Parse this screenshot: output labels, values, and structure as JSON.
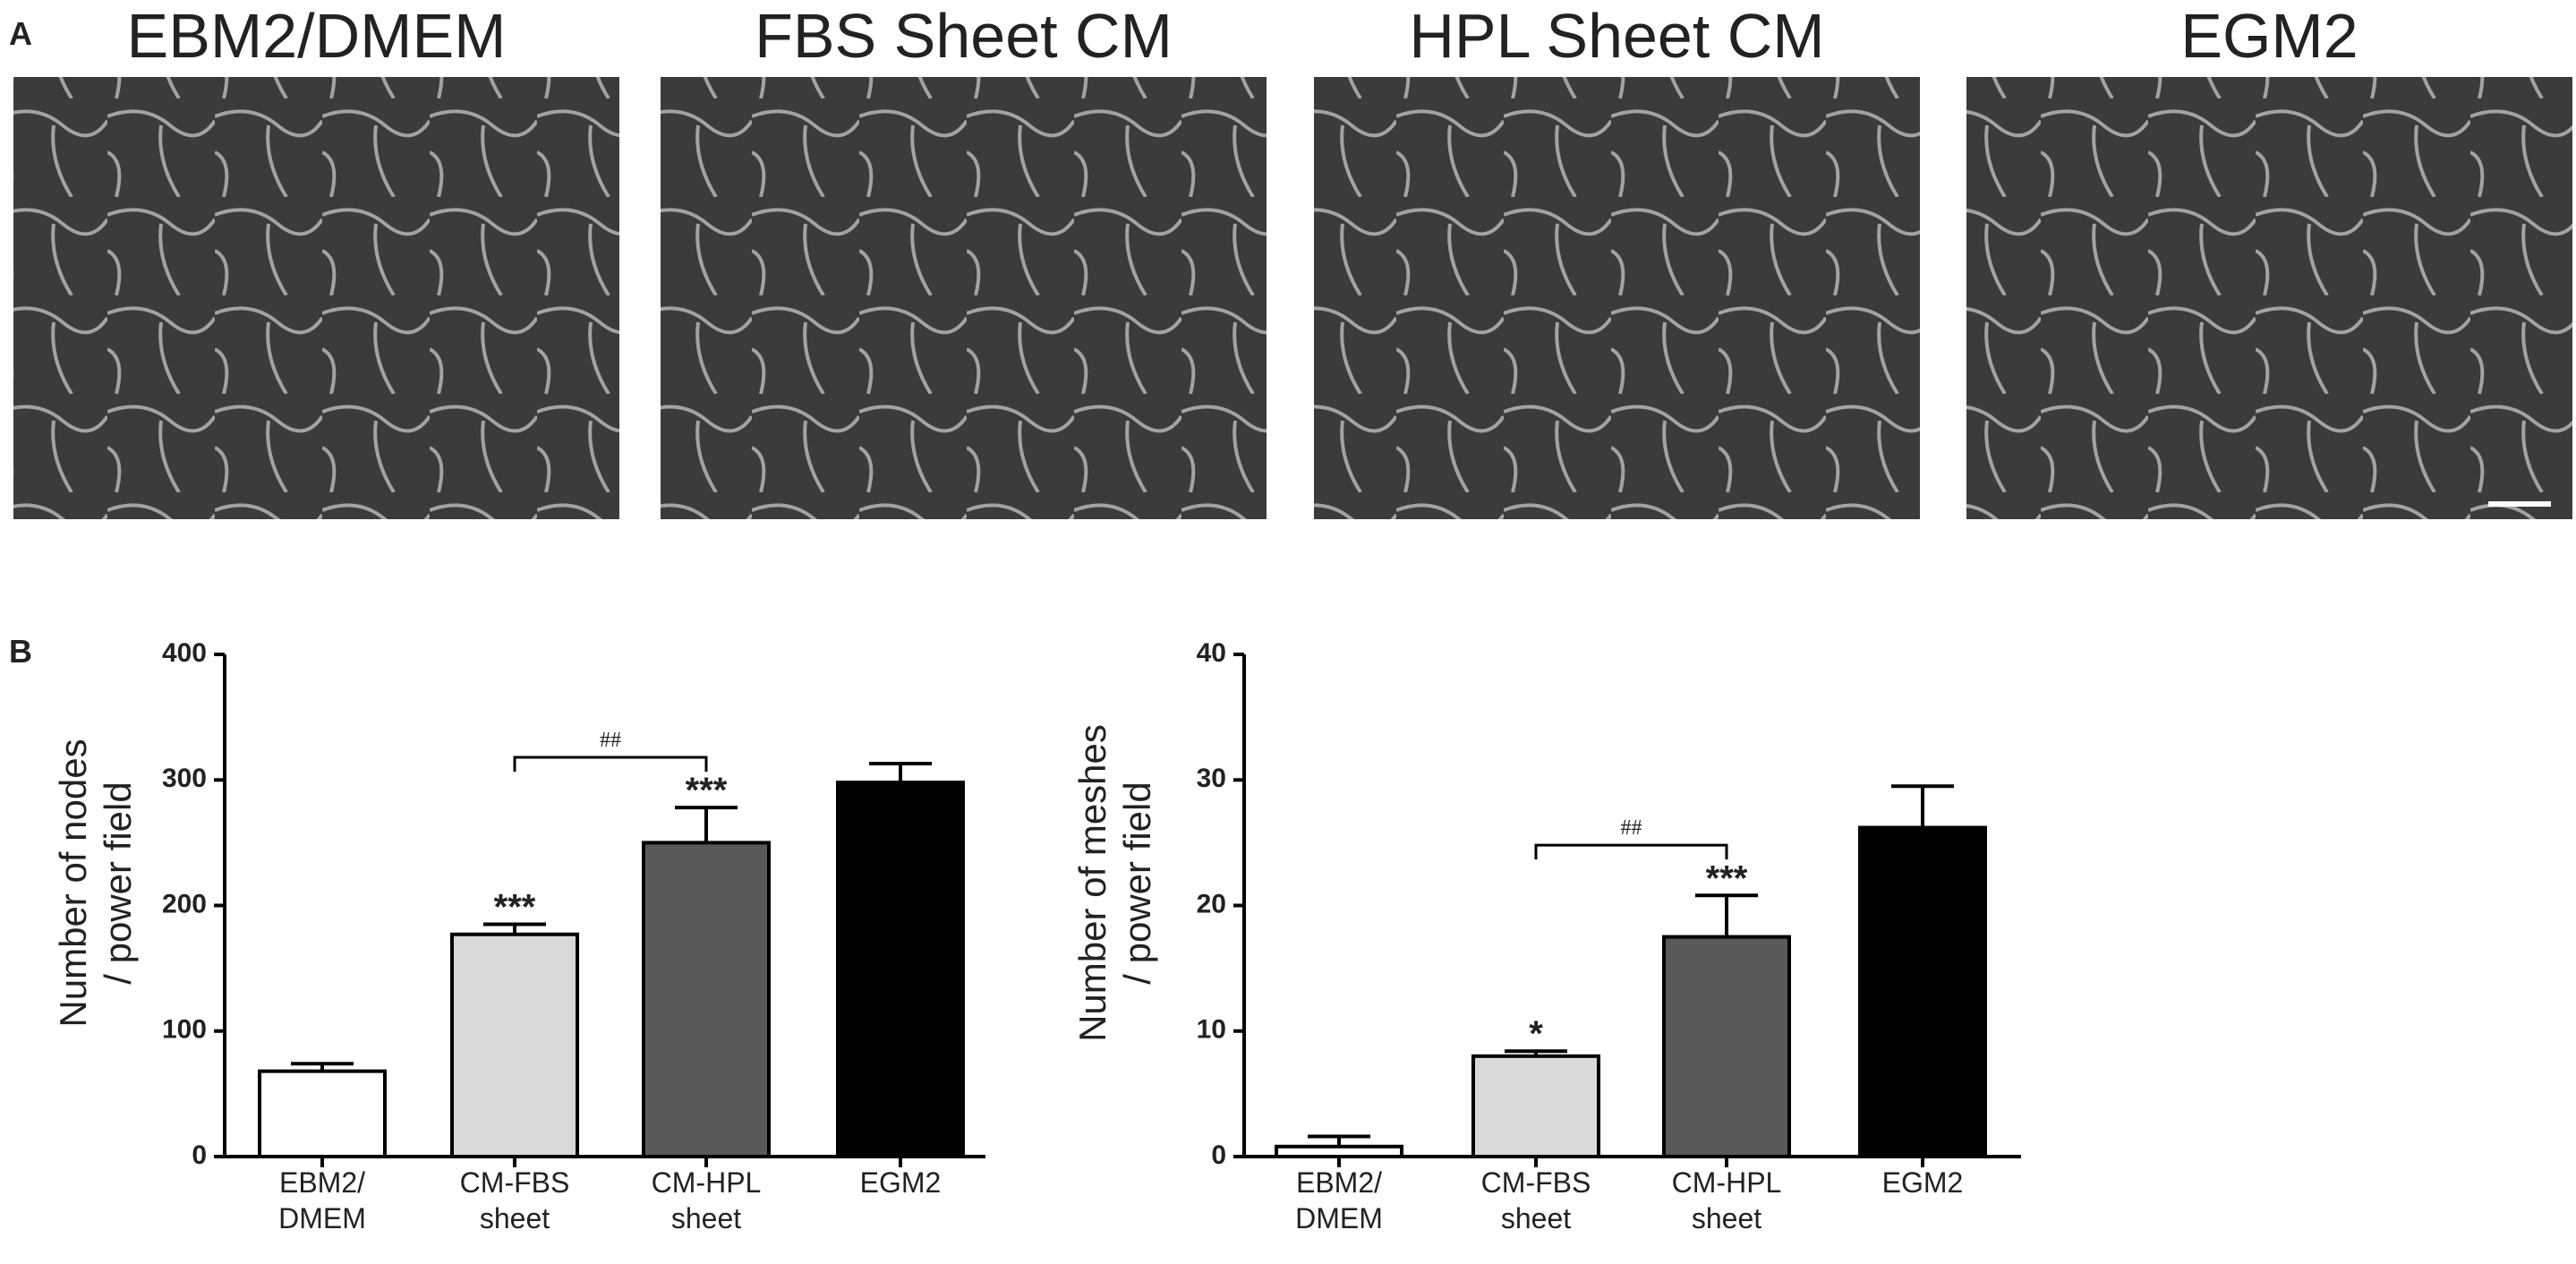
{
  "panel_labels": [
    "A",
    "B"
  ],
  "images": [
    {
      "title": "EBM2/DMEM"
    },
    {
      "title": "FBS Sheet CM"
    },
    {
      "title": "HPL Sheet CM"
    },
    {
      "title": "EGM2"
    }
  ],
  "chart_data": [
    {
      "type": "bar",
      "ylabel": "Number of nodes\n/ power field",
      "categories": [
        "EBM2/\nDMEM",
        "CM-FBS\nsheet",
        "CM-HPL\nsheet",
        "EGM2"
      ],
      "values": [
        68,
        177,
        250,
        298
      ],
      "errors": [
        6,
        8,
        28,
        15
      ],
      "colors": [
        "#ffffff",
        "#d9d9d9",
        "#595959",
        "#000000"
      ],
      "value_annotations": [
        null,
        "***",
        "***",
        null
      ],
      "bracket": {
        "label": "##",
        "categories": [
          "CM-FBS\nsheet",
          "CM-HPL\nsheet"
        ]
      },
      "ylim": [
        0,
        400
      ],
      "yticks": [
        0,
        100,
        200,
        300,
        400
      ]
    },
    {
      "type": "bar",
      "ylabel": "Number of meshes\n/ power field",
      "categories": [
        "EBM2/\nDMEM",
        "CM-FBS\nsheet",
        "CM-HPL\nsheet",
        "EGM2"
      ],
      "values": [
        0.8,
        8.0,
        17.5,
        26.2
      ],
      "errors": [
        0.8,
        0.4,
        3.3,
        3.3
      ],
      "colors": [
        "#ffffff",
        "#d9d9d9",
        "#595959",
        "#000000"
      ],
      "value_annotations": [
        null,
        "*",
        "***",
        null
      ],
      "bracket": {
        "label": "##",
        "categories": [
          "CM-FBS\nsheet",
          "CM-HPL\nsheet"
        ]
      },
      "ylim": [
        0,
        40
      ],
      "yticks": [
        0,
        10,
        20,
        30,
        40
      ]
    }
  ]
}
